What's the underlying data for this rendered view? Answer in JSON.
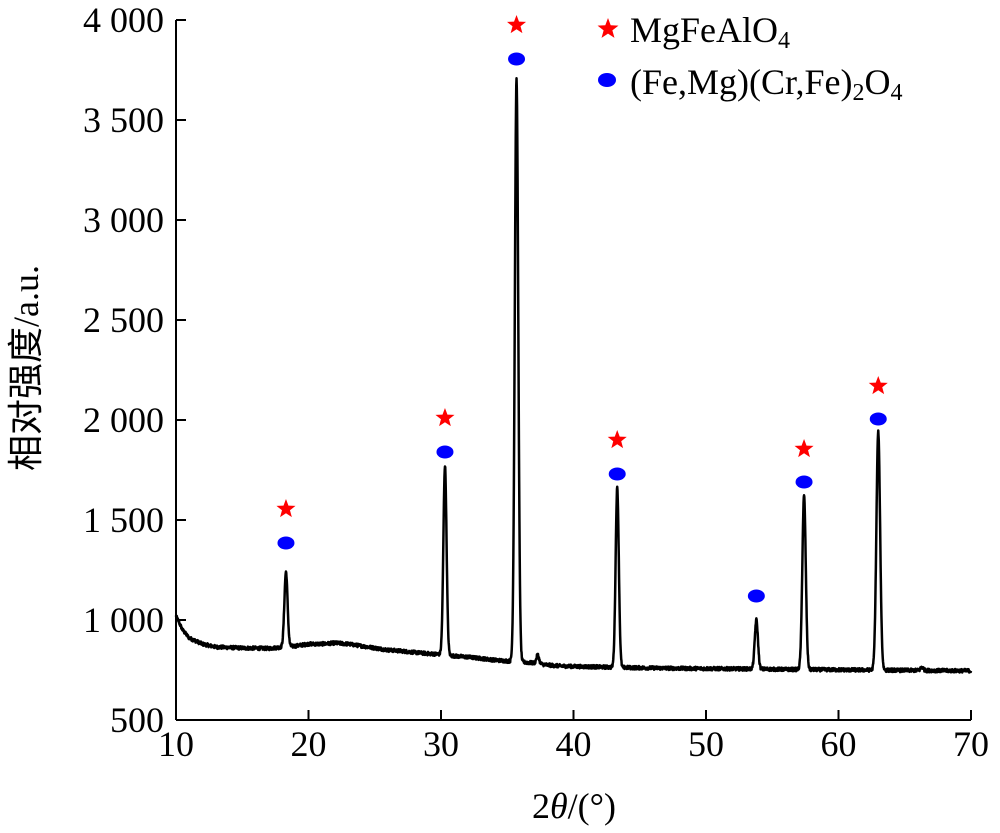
{
  "chart_data": {
    "type": "line",
    "xlabel": {
      "prefix": "2",
      "var": "θ",
      "suffix": "/(°)"
    },
    "ylabel": "相对强度/a.u.",
    "xlim": [
      10,
      70
    ],
    "ylim": [
      500,
      4000
    ],
    "xticks": [
      10,
      20,
      30,
      40,
      50,
      60,
      70
    ],
    "yticks": [
      500,
      1000,
      1500,
      2000,
      2500,
      3000,
      3500,
      4000
    ],
    "ytick_labels": [
      "500",
      "1 000",
      "1 500",
      "2 000",
      "2 500",
      "3 000",
      "3 500",
      "4 000"
    ],
    "grid": false,
    "legend_position": "top-right",
    "series": [
      {
        "color": "#000000",
        "baseline": [
          [
            10,
            1020
          ],
          [
            10.5,
            950
          ],
          [
            11,
            910
          ],
          [
            12,
            880
          ],
          [
            13,
            865
          ],
          [
            15,
            860
          ],
          [
            17,
            858
          ],
          [
            19,
            870
          ],
          [
            20,
            880
          ],
          [
            21,
            880
          ],
          [
            22,
            885
          ],
          [
            23,
            880
          ],
          [
            24,
            870
          ],
          [
            25,
            860
          ],
          [
            26,
            850
          ],
          [
            27,
            845
          ],
          [
            28,
            838
          ],
          [
            29,
            832
          ],
          [
            30,
            828
          ],
          [
            31,
            820
          ],
          [
            32,
            815
          ],
          [
            33,
            808
          ],
          [
            34,
            800
          ],
          [
            35,
            795
          ],
          [
            36,
            790
          ],
          [
            37,
            785
          ],
          [
            38,
            775
          ],
          [
            39,
            770
          ],
          [
            40,
            768
          ],
          [
            42,
            765
          ],
          [
            44,
            762
          ],
          [
            46,
            760
          ],
          [
            48,
            758
          ],
          [
            50,
            757
          ],
          [
            52,
            756
          ],
          [
            54,
            755
          ],
          [
            56,
            753
          ],
          [
            58,
            752
          ],
          [
            60,
            751
          ],
          [
            62,
            750
          ],
          [
            64,
            749
          ],
          [
            66,
            748
          ],
          [
            68,
            747
          ],
          [
            70,
            746
          ]
        ],
        "peaks": [
          {
            "x": 18.3,
            "height": 1240,
            "width": 0.12
          },
          {
            "x": 30.3,
            "height": 1770,
            "width": 0.12
          },
          {
            "x": 35.7,
            "height": 3700,
            "width": 0.13
          },
          {
            "x": 37.3,
            "height": 825,
            "width": 0.1
          },
          {
            "x": 43.3,
            "height": 1660,
            "width": 0.12
          },
          {
            "x": 53.8,
            "height": 1000,
            "width": 0.12
          },
          {
            "x": 57.4,
            "height": 1620,
            "width": 0.13
          },
          {
            "x": 63.0,
            "height": 1940,
            "width": 0.14
          },
          {
            "x": 66.3,
            "height": 765,
            "width": 0.1
          }
        ]
      }
    ],
    "markers": {
      "MgFeAlO4": [
        {
          "x": 18.3,
          "y": 1555
        },
        {
          "x": 30.3,
          "y": 2010
        },
        {
          "x": 35.7,
          "y": 3975
        },
        {
          "x": 43.3,
          "y": 1900
        },
        {
          "x": 57.4,
          "y": 1855
        },
        {
          "x": 63.0,
          "y": 2170
        }
      ],
      "FeMgCrFe2O4": [
        {
          "x": 18.3,
          "y": 1385
        },
        {
          "x": 30.3,
          "y": 1840
        },
        {
          "x": 35.7,
          "y": 3805
        },
        {
          "x": 43.3,
          "y": 1730
        },
        {
          "x": 53.8,
          "y": 1120
        },
        {
          "x": 57.4,
          "y": 1690
        },
        {
          "x": 63.0,
          "y": 2005
        }
      ]
    },
    "legend": [
      {
        "symbol": "star",
        "color": "#ff0000",
        "label": "MgFeAlO",
        "subscript": "4"
      },
      {
        "symbol": "dot",
        "color": "#0000ff",
        "label_parts": [
          "(Fe,Mg)(Cr,Fe)",
          "2",
          "O",
          "4"
        ]
      }
    ],
    "colors": {
      "star": "#ff0000",
      "dot": "#0000ff",
      "line": "#000000",
      "axis": "#000000"
    }
  }
}
